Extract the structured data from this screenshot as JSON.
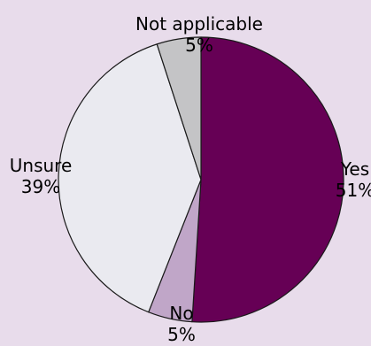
{
  "chart_data": {
    "type": "pie",
    "start_angle_deg": 0,
    "direction": "clockwise",
    "slices": [
      {
        "label": "Yes",
        "value": 51,
        "value_label": "51%",
        "color": "#660055"
      },
      {
        "label": "No",
        "value": 5,
        "value_label": "5%",
        "color": "#c0a6c8"
      },
      {
        "label": "Unsure",
        "value": 39,
        "value_label": "39%",
        "color": "#eaeaf0"
      },
      {
        "label": "Not applicable",
        "value": 5,
        "value_label": "5%",
        "color": "#c4c4c6"
      }
    ],
    "background_color": "#e8dceb",
    "edge_color": "#1a1a1a"
  }
}
